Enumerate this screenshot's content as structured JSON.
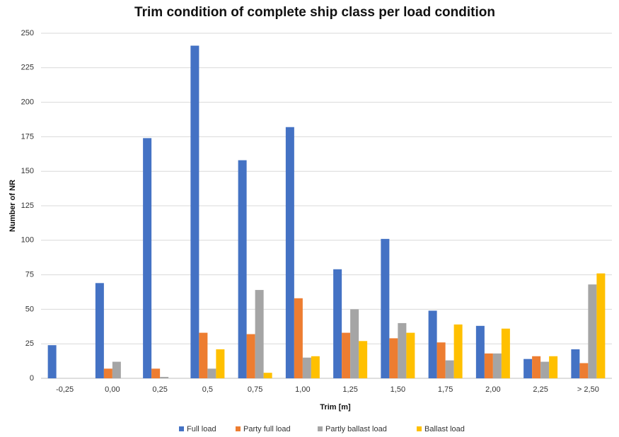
{
  "chart_data": {
    "type": "bar",
    "title": "Trim condition of complete ship class per load condition",
    "x_label": "Trim [m]",
    "y_label": "Number of NR",
    "categories": [
      "-0,25",
      "0,00",
      "0,25",
      "0,5",
      "0,75",
      "1,00",
      "1,25",
      "1,50",
      "1,75",
      "2,00",
      "2,25",
      "> 2,50"
    ],
    "series": [
      {
        "name": "Full load",
        "color": "#4472c4",
        "values": [
          24,
          69,
          174,
          241,
          158,
          182,
          79,
          101,
          49,
          38,
          14,
          21
        ]
      },
      {
        "name": "Party full load",
        "color": "#ed7d31",
        "values": [
          0,
          7,
          7,
          33,
          32,
          58,
          33,
          29,
          26,
          18,
          16,
          11
        ]
      },
      {
        "name": "Partly ballast load",
        "color": "#a5a5a5",
        "values": [
          0,
          12,
          1,
          7,
          64,
          15,
          50,
          40,
          13,
          18,
          12,
          68
        ]
      },
      {
        "name": "Ballast load",
        "color": "#ffc000",
        "values": [
          0,
          0,
          0,
          21,
          4,
          16,
          27,
          33,
          39,
          36,
          16,
          76
        ]
      }
    ],
    "ylim": [
      0,
      250
    ],
    "yticks": [
      0,
      25,
      50,
      75,
      100,
      125,
      150,
      175,
      200,
      225,
      250
    ],
    "grid": true,
    "legend": "bottom"
  }
}
